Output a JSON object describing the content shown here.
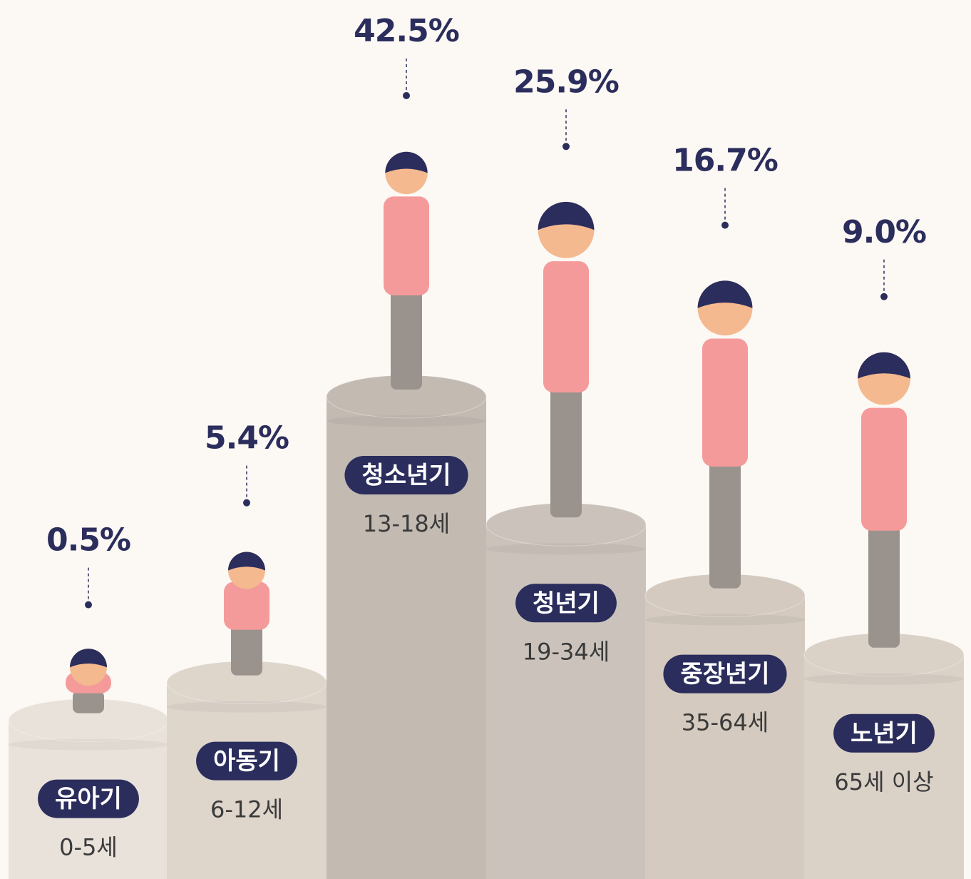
{
  "chart_data": {
    "type": "bar",
    "categories": [
      "유아기",
      "아동기",
      "청소년기",
      "청년기",
      "중장년기",
      "노년기"
    ],
    "age_ranges": [
      "0-5세",
      "6-12세",
      "13-18세",
      "19-34세",
      "35-64세",
      "65세 이상"
    ],
    "values": [
      0.5,
      5.4,
      42.5,
      25.9,
      16.7,
      9.0
    ],
    "value_labels": [
      "0.5%",
      "5.4%",
      "42.5%",
      "25.9%",
      "16.7%",
      "9.0%"
    ],
    "colors": [
      "#e9e2db",
      "#ded5cb",
      "#c3bab2",
      "#cbc3bb",
      "#d4cabf",
      "#dad1c7"
    ],
    "label_color": "#2b2d5c"
  }
}
